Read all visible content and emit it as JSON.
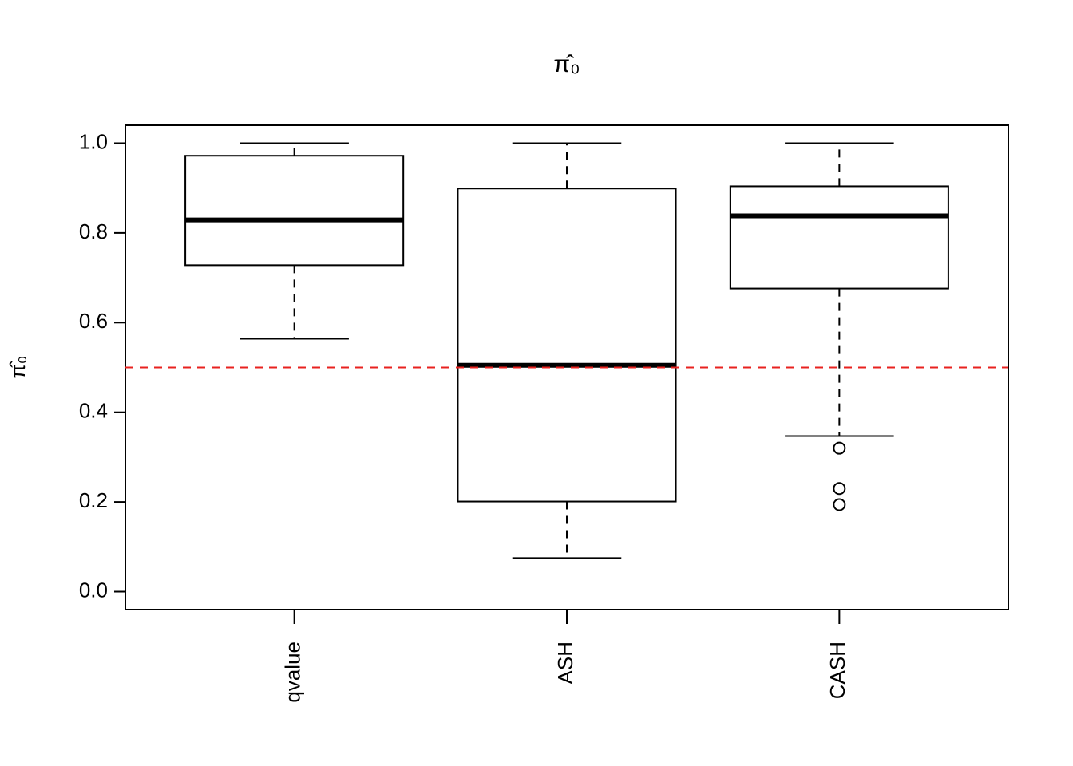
{
  "chart_data": {
    "type": "box",
    "title": "π̂₀",
    "y_label": "π̂₀",
    "categories": [
      "qvalue",
      "ASH",
      "CASH"
    ],
    "boxes": [
      {
        "low": 0.564,
        "q1": 0.728,
        "median": 0.829,
        "q3": 0.972,
        "high": 1.0,
        "outliers": []
      },
      {
        "low": 0.075,
        "q1": 0.201,
        "median": 0.505,
        "q3": 0.899,
        "high": 1.0,
        "outliers": []
      },
      {
        "low": 0.347,
        "q1": 0.676,
        "median": 0.838,
        "q3": 0.904,
        "high": 1.0,
        "outliers": [
          0.32,
          0.23,
          0.194
        ]
      }
    ],
    "reference_line": {
      "value": 0.5,
      "color": "#e8221f"
    },
    "ylim": [
      -0.04,
      1.04
    ],
    "yticks": [
      {
        "value": 0,
        "label": "0.0"
      },
      0.2,
      0.4,
      0.6,
      0.8,
      {
        "value": 1,
        "label": "1.0"
      }
    ],
    "color": "#ffffff"
  }
}
